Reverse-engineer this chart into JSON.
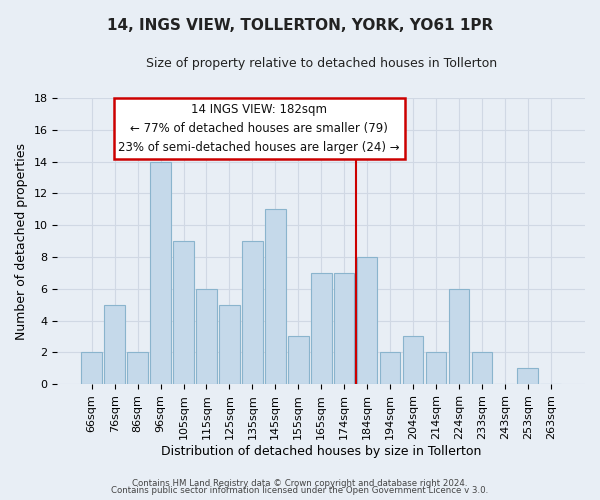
{
  "title": "14, INGS VIEW, TOLLERTON, YORK, YO61 1PR",
  "subtitle": "Size of property relative to detached houses in Tollerton",
  "xlabel": "Distribution of detached houses by size in Tollerton",
  "ylabel": "Number of detached properties",
  "footer_line1": "Contains HM Land Registry data © Crown copyright and database right 2024.",
  "footer_line2": "Contains public sector information licensed under the Open Government Licence v 3.0.",
  "bar_labels": [
    "66sqm",
    "76sqm",
    "86sqm",
    "96sqm",
    "105sqm",
    "115sqm",
    "125sqm",
    "135sqm",
    "145sqm",
    "155sqm",
    "165sqm",
    "174sqm",
    "184sqm",
    "194sqm",
    "204sqm",
    "214sqm",
    "224sqm",
    "233sqm",
    "243sqm",
    "253sqm",
    "263sqm"
  ],
  "bar_values": [
    2,
    5,
    2,
    14,
    9,
    6,
    5,
    9,
    11,
    3,
    7,
    7,
    8,
    2,
    3,
    2,
    6,
    2,
    0,
    1,
    0
  ],
  "bar_color": "#c5d9ea",
  "bar_edge_color": "#8ab4cd",
  "vline_color": "#cc0000",
  "annotation_title": "14 INGS VIEW: 182sqm",
  "annotation_line1": "← 77% of detached houses are smaller (79)",
  "annotation_line2": "23% of semi-detached houses are larger (24) →",
  "annotation_box_facecolor": "#ffffff",
  "annotation_box_edgecolor": "#cc0000",
  "ylim": [
    0,
    18
  ],
  "yticks": [
    0,
    2,
    4,
    6,
    8,
    10,
    12,
    14,
    16,
    18
  ],
  "grid_color": "#d0d8e4",
  "background_color": "#e8eef5",
  "title_fontsize": 11,
  "subtitle_fontsize": 9,
  "axis_label_fontsize": 9,
  "tick_fontsize": 8,
  "annotation_fontsize": 8.5
}
